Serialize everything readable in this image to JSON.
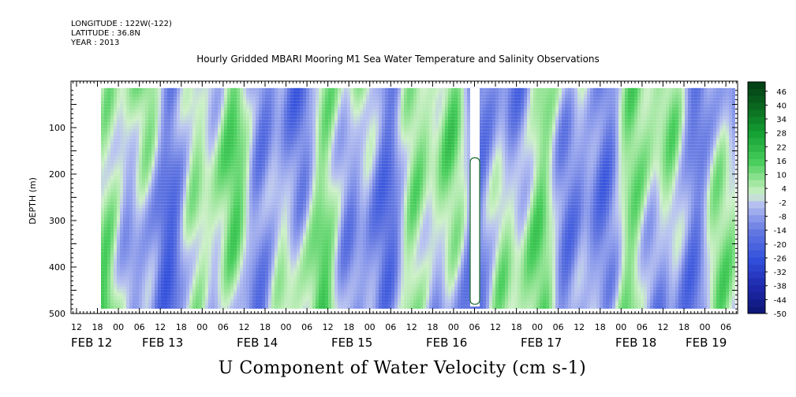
{
  "header": {
    "longitude": "LONGITUDE : 122W(-122)",
    "latitude": "LATITUDE : 36.8N",
    "year": "YEAR : 2013"
  },
  "title": "Hourly Gridded MBARI Mooring M1 Sea Water Temperature and Salinity Observations",
  "bottom_title": "U Component of Water Velocity (cm s-1)",
  "chart_data": {
    "type": "heatmap",
    "title": "Hourly Gridded MBARI Mooring M1 Sea Water Temperature and Salinity Observations",
    "subtitle": "U Component of Water Velocity (cm s-1)",
    "ylabel": "DEPTH (m)",
    "xlabel": "",
    "y_axis": {
      "reversed": true,
      "range": [
        0,
        500
      ],
      "ticks": [
        100,
        200,
        300,
        400,
        500
      ]
    },
    "x_axis": {
      "hour_ticks": [
        "12",
        "18",
        "00",
        "06",
        "12",
        "18",
        "00",
        "06",
        "12",
        "18",
        "00",
        "06",
        "12",
        "18",
        "00",
        "06",
        "12",
        "18",
        "00",
        "06",
        "12",
        "18",
        "00",
        "06",
        "12",
        "18",
        "00",
        "06",
        "12",
        "18",
        "00",
        "06"
      ],
      "day_labels": [
        "FEB 12",
        "FEB 13",
        "FEB 14",
        "FEB 15",
        "FEB 16",
        "FEB 17",
        "FEB 18",
        "FEB 19"
      ]
    },
    "colorbar": {
      "labels": [
        "46",
        "40",
        "34",
        "28",
        "22",
        "16",
        "10",
        "4",
        "-2",
        "-8",
        "-14",
        "-20",
        "-26",
        "-32",
        "-38",
        "-44",
        "-50"
      ],
      "range": [
        -50,
        50
      ],
      "step": 3
    },
    "data_extent": {
      "depth_range": [
        15,
        485
      ]
    },
    "colors": {
      "positive": "#1f9b35",
      "negative": "#2b3fd6",
      "neutral": "#cfe9cf"
    }
  }
}
